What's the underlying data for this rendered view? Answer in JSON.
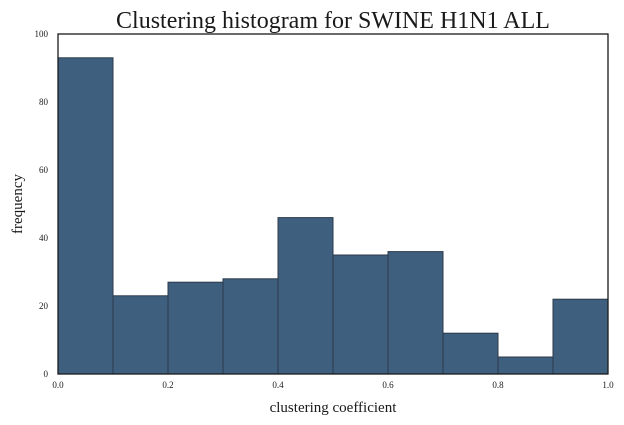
{
  "chart_data": {
    "type": "bar",
    "title": "Clustering histogram for SWINE  H1N1  ALL",
    "xlabel": "clustering coefficient",
    "ylabel": "frequency",
    "bins": [
      {
        "x0": 0.0,
        "x1": 0.1,
        "value": 93
      },
      {
        "x0": 0.1,
        "x1": 0.2,
        "value": 23
      },
      {
        "x0": 0.2,
        "x1": 0.3,
        "value": 27
      },
      {
        "x0": 0.3,
        "x1": 0.4,
        "value": 28
      },
      {
        "x0": 0.4,
        "x1": 0.5,
        "value": 46
      },
      {
        "x0": 0.5,
        "x1": 0.6,
        "value": 35
      },
      {
        "x0": 0.6,
        "x1": 0.7,
        "value": 36
      },
      {
        "x0": 0.7,
        "x1": 0.8,
        "value": 12
      },
      {
        "x0": 0.8,
        "x1": 0.9,
        "value": 5
      },
      {
        "x0": 0.9,
        "x1": 1.0,
        "value": 22
      }
    ],
    "xlim": [
      0,
      1
    ],
    "ylim": [
      0,
      100
    ],
    "xticks": [
      "0.0",
      "0.2",
      "0.4",
      "0.6",
      "0.8",
      "1.0"
    ],
    "yticks": [
      "0",
      "20",
      "40",
      "60",
      "80",
      "100"
    ],
    "bar_color": "#3f5f7f",
    "grid": false
  }
}
